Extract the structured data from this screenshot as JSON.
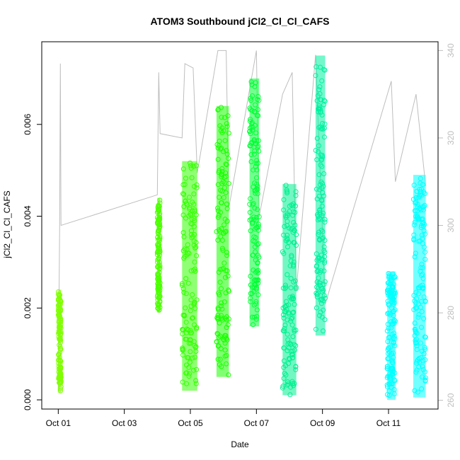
{
  "chart_data": {
    "type": "scatter",
    "title": "ATOM3 Southbound jCl2_Cl_Cl_CAFS",
    "xlabel": "Date",
    "ylabel": "jCl2_Cl_Cl_CAFS",
    "y2label": "",
    "xlim": [
      "2016-09-30T12:00",
      "2016-10-12T12:00"
    ],
    "ylim": [
      -0.0002,
      0.0078
    ],
    "y2lim": [
      258,
      342
    ],
    "x_ticks": [
      {
        "date": "2016-10-01",
        "label": "Oct 01"
      },
      {
        "date": "2016-10-03",
        "label": "Oct 03"
      },
      {
        "date": "2016-10-05",
        "label": "Oct 05"
      },
      {
        "date": "2016-10-07",
        "label": "Oct 07"
      },
      {
        "date": "2016-10-09",
        "label": "Oct 09"
      },
      {
        "date": "2016-10-11",
        "label": "Oct 11"
      }
    ],
    "y_ticks": [
      0.0,
      0.002,
      0.004,
      0.006
    ],
    "y_tick_labels": [
      "0.000",
      "0.002",
      "0.004",
      "0.006"
    ],
    "y2_ticks": [
      260,
      280,
      300,
      320,
      340
    ],
    "y2_tick_labels": [
      "260",
      "280",
      "300",
      "320",
      "340"
    ],
    "grid": false,
    "legend": "none",
    "series": [
      {
        "segments": [
          {
            "start": "2016-10-01T00:00",
            "end": "2016-10-01T02:00",
            "low": 0.00015,
            "high": 0.0024,
            "color": "#7fff00"
          },
          {
            "start": "2016-10-04T00:00",
            "end": "2016-10-04T02:00",
            "low": 0.0019,
            "high": 0.0044,
            "color": "#4cff00"
          },
          {
            "start": "2016-10-04T18:00",
            "end": "2016-10-05T05:00",
            "low": 0.0002,
            "high": 0.0052,
            "color": "#33ff00"
          },
          {
            "start": "2016-10-05T19:00",
            "end": "2016-10-06T04:00",
            "low": 0.0005,
            "high": 0.0064,
            "color": "#1aff00"
          },
          {
            "start": "2016-10-06T19:00",
            "end": "2016-10-07T02:00",
            "low": 0.0016,
            "high": 0.007,
            "color": "#00ff33"
          },
          {
            "start": "2016-10-07T19:00",
            "end": "2016-10-08T05:00",
            "low": 0.0001,
            "high": 0.0047,
            "color": "#00f090"
          },
          {
            "start": "2016-10-08T19:00",
            "end": "2016-10-09T02:00",
            "low": 0.0014,
            "high": 0.0075,
            "color": "#00f0a0"
          },
          {
            "start": "2016-10-10T23:00",
            "end": "2016-10-11T05:00",
            "low": 0.0,
            "high": 0.0028,
            "color": "#00ffff"
          },
          {
            "start": "2016-10-11T18:00",
            "end": "2016-10-12T03:00",
            "low": 5e-05,
            "high": 0.0049,
            "color": "#00ffff"
          }
        ]
      }
    ],
    "secondary_line": {
      "color": "#bebebe",
      "points": [
        {
          "x": "2016-10-01T00:00",
          "y": 262
        },
        {
          "x": "2016-10-01T01:00",
          "y": 300
        },
        {
          "x": "2016-10-01T01:30",
          "y": 337
        },
        {
          "x": "2016-10-01T02:00",
          "y": 300
        },
        {
          "x": "2016-10-04T00:00",
          "y": 307
        },
        {
          "x": "2016-10-04T01:00",
          "y": 335
        },
        {
          "x": "2016-10-04T02:00",
          "y": 321
        },
        {
          "x": "2016-10-04T18:00",
          "y": 320
        },
        {
          "x": "2016-10-04T20:00",
          "y": 337
        },
        {
          "x": "2016-10-05T02:00",
          "y": 336
        },
        {
          "x": "2016-10-05T05:00",
          "y": 312
        },
        {
          "x": "2016-10-05T20:00",
          "y": 340
        },
        {
          "x": "2016-10-06T02:00",
          "y": 340
        },
        {
          "x": "2016-10-06T04:00",
          "y": 304
        },
        {
          "x": "2016-10-07T00:00",
          "y": 340
        },
        {
          "x": "2016-10-07T02:00",
          "y": 302
        },
        {
          "x": "2016-10-07T19:00",
          "y": 330
        },
        {
          "x": "2016-10-08T02:00",
          "y": 335
        },
        {
          "x": "2016-10-08T05:00",
          "y": 285
        },
        {
          "x": "2016-10-08T19:00",
          "y": 339
        },
        {
          "x": "2016-10-09T02:00",
          "y": 282
        },
        {
          "x": "2016-10-11T02:00",
          "y": 333
        },
        {
          "x": "2016-10-11T05:00",
          "y": 310
        },
        {
          "x": "2016-10-11T20:00",
          "y": 330
        },
        {
          "x": "2016-10-12T03:00",
          "y": 309
        }
      ]
    }
  }
}
